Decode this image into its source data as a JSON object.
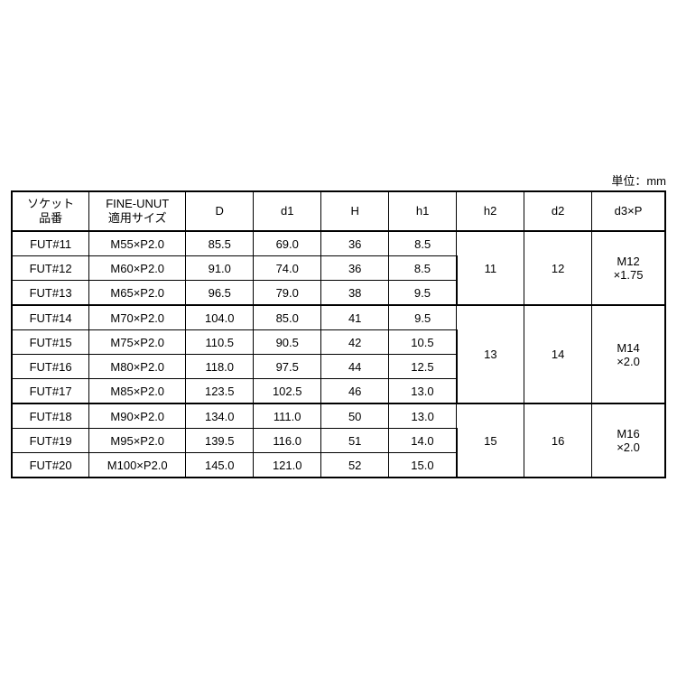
{
  "unit_label": "単位：mm",
  "table": {
    "headers": {
      "socket": "ソケット\n品番",
      "size": "FINE-UNUT\n適用サイズ",
      "D": "D",
      "d1": "d1",
      "H": "H",
      "h1": "h1",
      "h2": "h2",
      "d2": "d2",
      "d3p": "d3×P"
    },
    "groups": [
      {
        "h2": "11",
        "d2": "12",
        "d3p": "M12\n×1.75",
        "rows": [
          {
            "socket": "FUT#11",
            "size": "M55×P2.0",
            "D": "85.5",
            "d1": "69.0",
            "H": "36",
            "h1": "8.5"
          },
          {
            "socket": "FUT#12",
            "size": "M60×P2.0",
            "D": "91.0",
            "d1": "74.0",
            "H": "36",
            "h1": "8.5"
          },
          {
            "socket": "FUT#13",
            "size": "M65×P2.0",
            "D": "96.5",
            "d1": "79.0",
            "H": "38",
            "h1": "9.5"
          }
        ]
      },
      {
        "h2": "13",
        "d2": "14",
        "d3p": "M14\n×2.0",
        "rows": [
          {
            "socket": "FUT#14",
            "size": "M70×P2.0",
            "D": "104.0",
            "d1": "85.0",
            "H": "41",
            "h1": "9.5"
          },
          {
            "socket": "FUT#15",
            "size": "M75×P2.0",
            "D": "110.5",
            "d1": "90.5",
            "H": "42",
            "h1": "10.5"
          },
          {
            "socket": "FUT#16",
            "size": "M80×P2.0",
            "D": "118.0",
            "d1": "97.5",
            "H": "44",
            "h1": "12.5"
          },
          {
            "socket": "FUT#17",
            "size": "M85×P2.0",
            "D": "123.5",
            "d1": "102.5",
            "H": "46",
            "h1": "13.0"
          }
        ]
      },
      {
        "h2": "15",
        "d2": "16",
        "d3p": "M16\n×2.0",
        "rows": [
          {
            "socket": "FUT#18",
            "size": "M90×P2.0",
            "D": "134.0",
            "d1": "111.0",
            "H": "50",
            "h1": "13.0"
          },
          {
            "socket": "FUT#19",
            "size": "M95×P2.0",
            "D": "139.5",
            "d1": "116.0",
            "H": "51",
            "h1": "14.0"
          },
          {
            "socket": "FUT#20",
            "size": "M100×P2.0",
            "D": "145.0",
            "d1": "121.0",
            "H": "52",
            "h1": "15.0"
          }
        ]
      }
    ]
  },
  "colors": {
    "background": "#ffffff",
    "text": "#000000",
    "border": "#000000"
  },
  "fonts": {
    "body_size_pt": 10,
    "header_size_pt": 10,
    "family": "MS Gothic"
  }
}
